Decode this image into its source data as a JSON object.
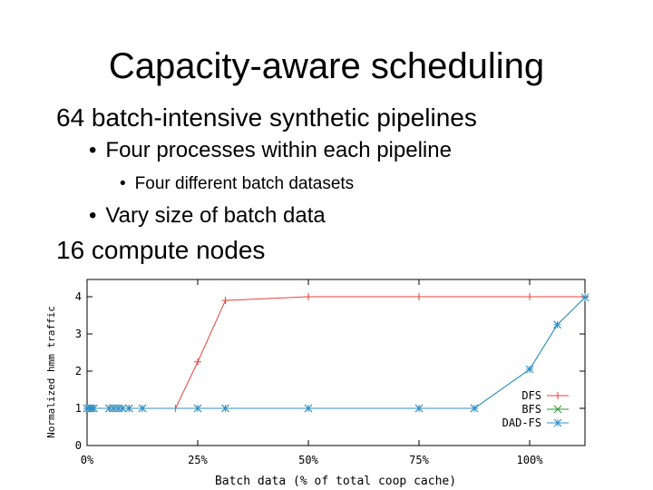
{
  "slide": {
    "title": "Capacity-aware scheduling",
    "bullets": [
      {
        "level": 1,
        "text": "64 batch-intensive synthetic pipelines"
      },
      {
        "level": 2,
        "text": "Four processes within each pipeline"
      },
      {
        "level": 3,
        "text": "Four different batch datasets"
      },
      {
        "level": 2,
        "text": "Vary size of batch data"
      },
      {
        "level": 1,
        "text": "16 compute nodes"
      }
    ],
    "bullet_char": "•"
  },
  "chart_data": {
    "type": "line",
    "xlabel": "Batch data (% of total coop cache)",
    "ylabel": "Normalized hmm traffic",
    "xlim": [
      0,
      112.5
    ],
    "ylim": [
      0,
      4
    ],
    "x_ticks": [
      0,
      25,
      50,
      75,
      100
    ],
    "x_tick_labels": [
      "0%",
      "25%",
      "50%",
      "75%",
      "100%"
    ],
    "y_ticks": [
      0,
      1,
      2,
      3,
      4
    ],
    "y_tick_labels": [
      "0",
      "1",
      "2",
      "3",
      "4"
    ],
    "grid": false,
    "legend_position": "bottom-right",
    "series": [
      {
        "name": "DFS",
        "color": "#e8413a",
        "marker": "plus",
        "x": [
          0,
          0.5,
          1,
          1.5,
          5,
          6,
          7,
          8,
          9.5,
          12.5,
          20,
          25,
          31.25,
          50,
          75,
          100,
          112.5
        ],
        "y": [
          1,
          1,
          1,
          1,
          1,
          1,
          1,
          1,
          1,
          1,
          1,
          2.25,
          3.9,
          4,
          4,
          4,
          4
        ]
      },
      {
        "name": "BFS",
        "color": "#2a9a2a",
        "marker": "cross",
        "x": [
          0,
          0.5,
          1,
          1.5,
          5,
          6,
          7,
          8,
          9.5,
          12.5,
          25,
          31.25,
          50,
          75,
          87.5,
          100,
          106.25,
          112.5
        ],
        "y": [
          1,
          1,
          1,
          1,
          1,
          1,
          1,
          1,
          1,
          1,
          1,
          1,
          1,
          1,
          1,
          2.05,
          3.25,
          3.98
        ]
      },
      {
        "name": "DAD-FS",
        "color": "#2f8fd0",
        "marker": "star",
        "x": [
          0,
          0.5,
          1,
          1.5,
          5,
          6,
          7,
          8,
          9.5,
          12.5,
          25,
          31.25,
          50,
          75,
          87.5,
          100,
          106.25,
          112.5
        ],
        "y": [
          1,
          1,
          1,
          1,
          1,
          1,
          1,
          1,
          1,
          1,
          1,
          1,
          1,
          1,
          1,
          2.05,
          3.25,
          3.98
        ]
      }
    ]
  }
}
